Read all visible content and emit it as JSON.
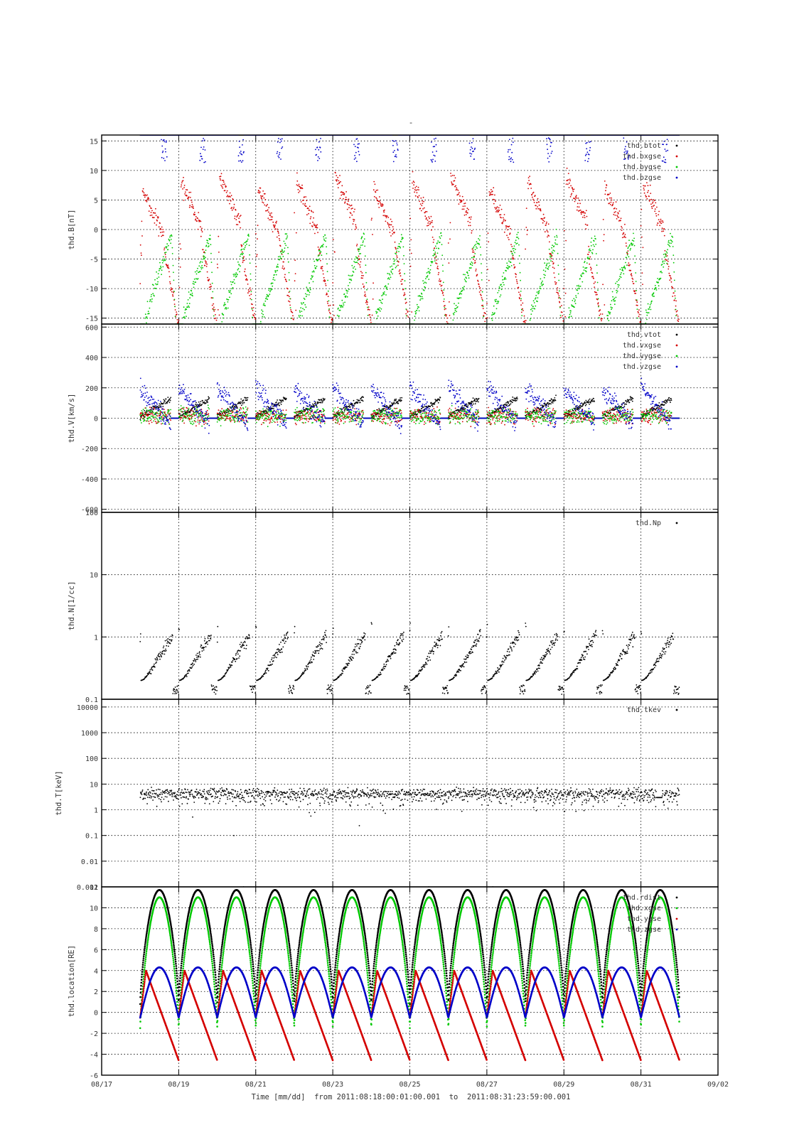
{
  "chart_data": {
    "type": "scatter",
    "title": "-",
    "xlabel": "Time [mm/dd]  from 2011:08:18:00:01:00.001  to  2011:08:31:23:59:00.001",
    "x_range_days": [
      17,
      33
    ],
    "x_ticks": [
      {
        "day": 17,
        "label": "08/17"
      },
      {
        "day": 19,
        "label": "08/19"
      },
      {
        "day": 21,
        "label": "08/21"
      },
      {
        "day": 23,
        "label": "08/23"
      },
      {
        "day": 25,
        "label": "08/25"
      },
      {
        "day": 27,
        "label": "08/27"
      },
      {
        "day": 29,
        "label": "08/29"
      },
      {
        "day": 31,
        "label": "08/31"
      },
      {
        "day": 33,
        "label": "09/02"
      }
    ],
    "data_span_days": [
      18.0,
      32.0
    ],
    "orbit_period_days": 1.0,
    "panels": [
      {
        "ylabel": "thd.B[nT]",
        "scale": "linear",
        "ylim": [
          -16,
          16
        ],
        "yticks": [
          {
            "v": 15,
            "label": "15"
          },
          {
            "v": 10,
            "label": "10"
          },
          {
            "v": 5,
            "label": "5"
          },
          {
            "v": 0,
            "label": "0"
          },
          {
            "v": -5,
            "label": "-5"
          },
          {
            "v": -10,
            "label": "-10"
          },
          {
            "v": -15,
            "label": "-15"
          }
        ],
        "legend_position": "top-right",
        "series": [
          {
            "name": "thd.btot",
            "color": "#000000",
            "profile": "clip-top",
            "approx_values": [
              16,
              16
            ]
          },
          {
            "name": "thd.bxgse",
            "color": "#d40000",
            "profile": "sawtooth-decay",
            "approx_values": [
              8,
              -16
            ]
          },
          {
            "name": "thd.bygse",
            "color": "#00c800",
            "profile": "rise-then-drop",
            "approx_values": [
              -16,
              0
            ]
          },
          {
            "name": "thd.bzgse",
            "color": "#0000c8",
            "profile": "near-top-with-dips",
            "approx_values": [
              16,
              12
            ]
          }
        ]
      },
      {
        "ylabel": "thd.V[km/s]",
        "scale": "linear",
        "ylim": [
          -620,
          620
        ],
        "yticks": [
          {
            "v": 600,
            "label": "600"
          },
          {
            "v": 400,
            "label": "400"
          },
          {
            "v": 200,
            "label": "200"
          },
          {
            "v": 0,
            "label": "0"
          },
          {
            "v": -200,
            "label": "-200"
          },
          {
            "v": -400,
            "label": "-400"
          },
          {
            "v": -600,
            "label": "-600"
          }
        ],
        "legend_position": "top-right",
        "series": [
          {
            "name": "thd.vtot",
            "color": "#000000",
            "profile": "rise",
            "approx_values": [
              0,
              120
            ]
          },
          {
            "name": "thd.vxgse",
            "color": "#d40000",
            "profile": "noise",
            "approx_values": [
              -30,
              60
            ]
          },
          {
            "name": "thd.vygse",
            "color": "#00c800",
            "profile": "noise",
            "approx_values": [
              -60,
              40
            ]
          },
          {
            "name": "thd.vzgse",
            "color": "#0000c8",
            "profile": "decay-noisy",
            "approx_values": [
              220,
              -60
            ]
          }
        ]
      },
      {
        "ylabel": "thd.N[1/cc]",
        "scale": "log",
        "ylim": [
          0.1,
          100
        ],
        "yticks": [
          {
            "v": 100,
            "label": "100"
          },
          {
            "v": 10,
            "label": "10"
          },
          {
            "v": 1,
            "label": "1"
          },
          {
            "v": 0.1,
            "label": "0.1"
          }
        ],
        "legend_position": "top-right",
        "series": [
          {
            "name": "thd.Np",
            "color": "#000000",
            "profile": "density",
            "approx_values": [
              0.15,
              1.0
            ]
          }
        ]
      },
      {
        "ylabel": "thd.T[keV]",
        "scale": "log",
        "ylim": [
          0.001,
          20000
        ],
        "yticks": [
          {
            "v": 10000,
            "label": "10000"
          },
          {
            "v": 1000,
            "label": "1000"
          },
          {
            "v": 100,
            "label": "100"
          },
          {
            "v": 10,
            "label": "10"
          },
          {
            "v": 1,
            "label": "1"
          },
          {
            "v": 0.1,
            "label": "0.1"
          },
          {
            "v": 0.01,
            "label": "0.01"
          },
          {
            "v": 0.001,
            "label": "0.001"
          }
        ],
        "legend_position": "top-right",
        "series": [
          {
            "name": "thd.tkev",
            "color": "#000000",
            "profile": "temperature",
            "approx_values": [
              2,
              8
            ]
          }
        ]
      },
      {
        "ylabel": "thd.location[RE]",
        "scale": "linear",
        "ylim": [
          -6,
          12
        ],
        "yticks": [
          {
            "v": 12,
            "label": "12"
          },
          {
            "v": 10,
            "label": "10"
          },
          {
            "v": 8,
            "label": "8"
          },
          {
            "v": 6,
            "label": "6"
          },
          {
            "v": 4,
            "label": "4"
          },
          {
            "v": 2,
            "label": "2"
          },
          {
            "v": 0,
            "label": "0"
          },
          {
            "v": -2,
            "label": "-2"
          },
          {
            "v": -4,
            "label": "-4"
          },
          {
            "v": -6,
            "label": "-6"
          }
        ],
        "legend_position": "top-right",
        "series": [
          {
            "name": "thd.rdist",
            "color": "#000000",
            "profile": "orbit-r",
            "approx_values": [
              1,
              11.7
            ]
          },
          {
            "name": "thd.xgse",
            "color": "#00c800",
            "profile": "orbit-x",
            "approx_values": [
              -1.5,
              11
            ]
          },
          {
            "name": "thd.ygse",
            "color": "#d40000",
            "profile": "orbit-y",
            "approx_values": [
              -4.6,
              4
            ]
          },
          {
            "name": "thd.zgse",
            "color": "#0000c8",
            "profile": "orbit-z",
            "approx_values": [
              -0.5,
              4.3
            ]
          }
        ]
      }
    ]
  }
}
